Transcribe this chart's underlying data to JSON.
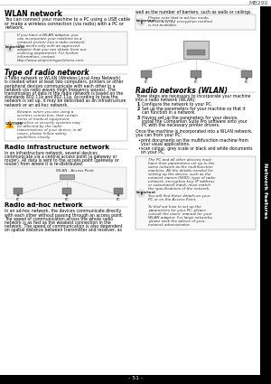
{
  "page_num": "MB290",
  "page_footer": "- 51 -",
  "bg_color": "#ffffff",
  "text_color": "#000000",
  "header_color": "#000000",
  "tab_color": "#000000",
  "sidebar_text": "Network features",
  "sidebar_bg": "#000000",
  "sidebar_text_color": "#ffffff",
  "top_bar_color": "#cccccc",
  "bottom_bar_color": "#000000",
  "header_right": "MB290",
  "title_left": "WLAN network",
  "title_right_partial": "well as the number of barriers, such as walls or ceilings.",
  "section1_title": "WLAN network",
  "section1_body": "You can connect your machine to a PC using a USB cable\nor make a wireless connection (via radio) with a PC or\nnetwork.",
  "important_box1": "If you have a WLAN adaptor, you\ncan incorporate your machine as a\nnetwork printer into a radio network.\nThis works only with an approved\nadaptor that you can obtain from our\nordering department. For further\ninformation, contact\nhttp://www.okiprintingsolutions.com.",
  "section2_title": "Type of radio network",
  "section2_body": "A radio network or WLAN (Wireless Local Area Network)\nis created when at least two computers, printers or other\nperipheral devices communicate with each other in a\nnetwork via radio waves (high frequency waves). The\ntransmission of data in the radio network is based on the\nstandards 802.11b and 802.11g. According to how the\nnetwork is set up, it may be described as an infrastructure\nnetwork or an ad-hoc network.",
  "caution_box": "Beware, when you are using a\nwireless connection, that certain\nitems of medical equipment,\nsensitive or security systems may\nbe affected by the radio\ntransmissions of your device; in all\ncases, please follow safety\nguidelines closely.",
  "section3_title": "Radio infrastructure network",
  "section3_body": "In an infrastructure network, several devices\ncommunicate via a central access point (a gateway or\nrouter). All data is sent to the access point (gateway or\nrouter) from where it is re-distributed.",
  "wlan_label": "WLAN - Access Point",
  "section4_title": "Radio ad-hoc network",
  "section4_body": "In an ad-hoc network, the devices communicate directly\nwith each other without passing through an access point.\nThe speed of communication across the whole radio\nnetwork is as fast as the weakest connection in the\nnetwork. The speed of communication is also dependent\non spatial distance between transmitter and receiver, as",
  "right_col_top": "well as the number of barriers, such as walls or ceilings.",
  "important_box2": "Please note that in ad-hoc mode,\nthe WPA/WPA2 encryption method\nis not available.",
  "section5_title": "Radio networks (WLAN)",
  "section5_intro": "Three steps are necessary to incorporate your machine\ninto a radio network (WLAN):",
  "section5_steps": [
    "Configure the network to your PC.",
    "Set up the parameters for your machine so that it\ncan function in a network.",
    "Having set up the parameters for your device,\ninstall the Companion Suite Pro software onto your\nPC with the necessary printer drivers."
  ],
  "section5_after": "Once the machine is incorporated into a WLAN network,\nyou can from your PC:",
  "section5_bullets": [
    "print documents on the multifunction machine from\nyour usual applications.",
    "scan colour, grey scale or black and white documents\non your PC."
  ],
  "important_box3": "The PC and all other devices must\nhave their parameters set up to the\nsame network as the multifunction\nmachine. All the details needed for\nsetting up the device, such as the\nnetwork names (SSID), type of radio\nnetwork, encryption key, IP address\nor subnetwork mask, must match\nthe specifications of the network.\n\nYou will find these details on your\nPC or on the Access Point.\n\nTo find out how to set up the\nparameters for your PC, please\nconsult the users' manual for your\nWLAN adaptor. For large networks,\nplease seek the advice of your\nnetwork administrator."
}
